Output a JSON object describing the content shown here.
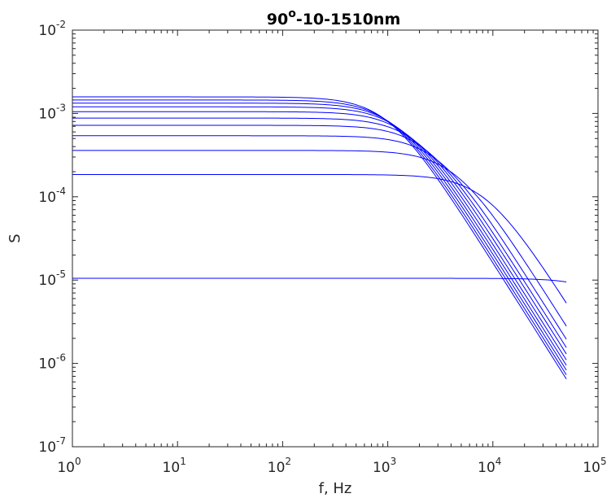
{
  "chart_data": {
    "type": "line",
    "title_parts": {
      "base": "90",
      "superscript": "o",
      "rest": "-10-1510nm"
    },
    "xlabel": "f, Hz",
    "ylabel": "S",
    "xscale": "log",
    "yscale": "log",
    "xlim": [
      1,
      100000
    ],
    "ylim": [
      1e-07,
      0.01
    ],
    "grid": false,
    "line_color": "#0000ff",
    "x_ticks": [
      {
        "base": "10",
        "exp": "0",
        "value": 1
      },
      {
        "base": "10",
        "exp": "1",
        "value": 10
      },
      {
        "base": "10",
        "exp": "2",
        "value": 100
      },
      {
        "base": "10",
        "exp": "3",
        "value": 1000
      },
      {
        "base": "10",
        "exp": "4",
        "value": 10000
      },
      {
        "base": "10",
        "exp": "5",
        "value": 100000
      }
    ],
    "y_ticks": [
      {
        "base": "10",
        "exp": "-7",
        "value": 1e-07
      },
      {
        "base": "10",
        "exp": "-6",
        "value": 1e-06
      },
      {
        "base": "10",
        "exp": "-5",
        "value": 1e-05
      },
      {
        "base": "10",
        "exp": "-4",
        "value": 0.0001
      },
      {
        "base": "10",
        "exp": "-3",
        "value": 0.001
      },
      {
        "base": "10",
        "exp": "-2",
        "value": 0.01
      }
    ],
    "series": [
      {
        "plateau": 1.05e-05,
        "end_value": 9.5e-06
      },
      {
        "plateau": 0.000185,
        "end_value": 5.3e-06
      },
      {
        "plateau": 0.00036,
        "end_value": 2.8e-06
      },
      {
        "plateau": 0.00054,
        "end_value": 1.95e-06
      },
      {
        "plateau": 0.00072,
        "end_value": 1.55e-06
      },
      {
        "plateau": 0.00088,
        "end_value": 1.3e-06
      },
      {
        "plateau": 0.00105,
        "end_value": 1.1e-06
      },
      {
        "plateau": 0.0012,
        "end_value": 9.5e-07
      },
      {
        "plateau": 0.00133,
        "end_value": 8.3e-07
      },
      {
        "plateau": 0.00145,
        "end_value": 7.3e-07
      },
      {
        "plateau": 0.00158,
        "end_value": 6.5e-07
      }
    ],
    "x_end": 50000
  }
}
